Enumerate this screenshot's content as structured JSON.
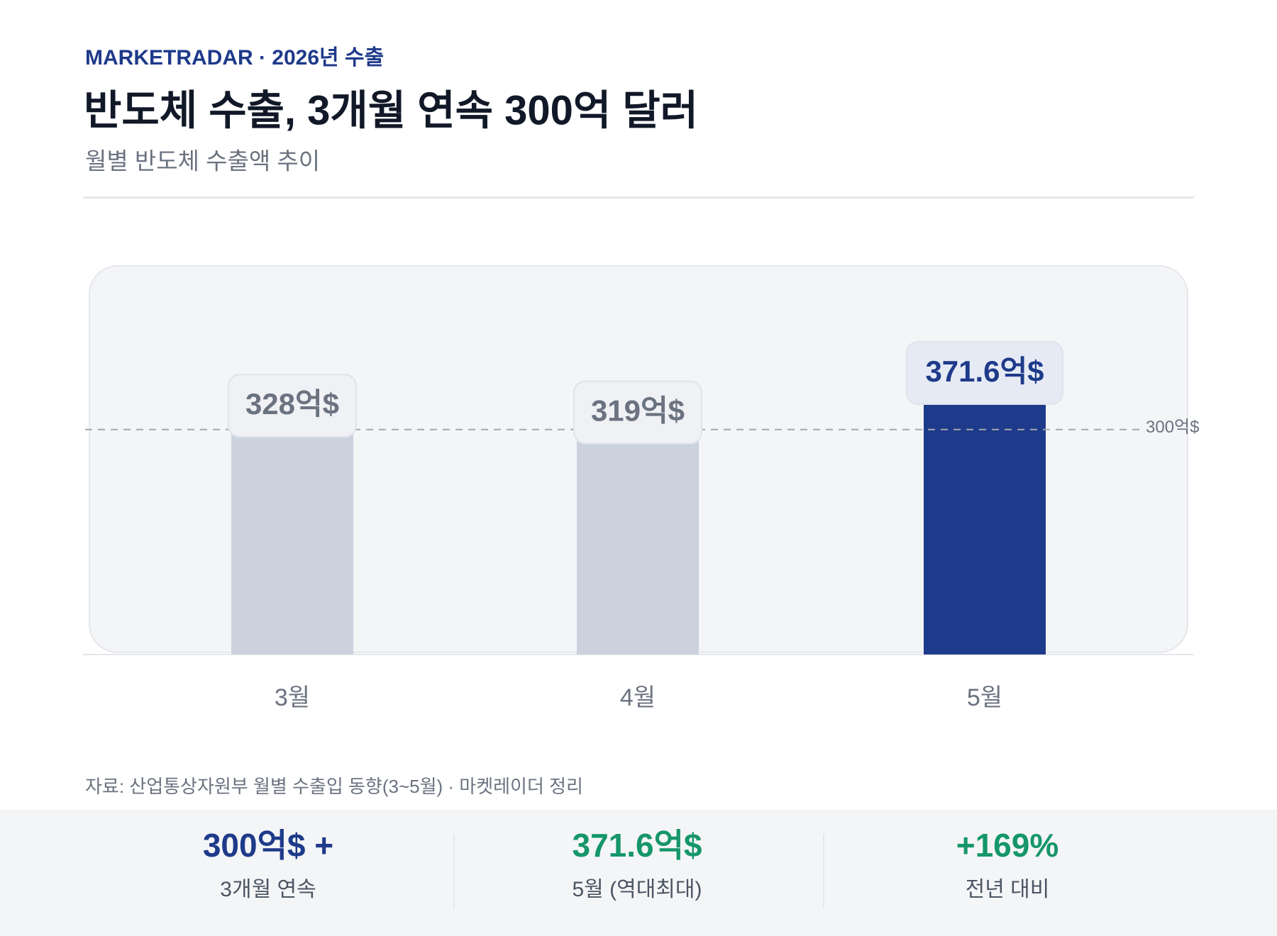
{
  "header": {
    "kicker": "MARKETRADAR · 2026년 수출",
    "title": "반도체 수출, 3개월 연속 300억 달러",
    "subtitle": "월별 반도체 수출액 추이"
  },
  "chart_data": {
    "type": "bar",
    "categories": [
      "3월",
      "4월",
      "5월"
    ],
    "values": [
      328,
      319,
      371.6
    ],
    "value_labels": [
      "328억$",
      "319억$",
      "371.6억$"
    ],
    "colors": [
      "#cbd2de",
      "#cbd2de",
      "#1e3a8a"
    ],
    "label_colors": [
      "#6b7280",
      "#6b7280",
      "#1e3a8a"
    ],
    "reference_line": {
      "value": 300,
      "label": "300억$"
    }
  },
  "source": "자료: 산업통상자원부 월별 수출입 동향(3~5월) · 마켓레이더 정리",
  "stats": [
    {
      "value": "300억$ +",
      "label": "3개월 연속",
      "color": "#1e3a8a"
    },
    {
      "value": "371.6억$",
      "label": "5월 (역대최대)",
      "color": "#15966b"
    },
    {
      "value": "+169%",
      "label": "전년 대비",
      "color": "#15966b"
    }
  ]
}
